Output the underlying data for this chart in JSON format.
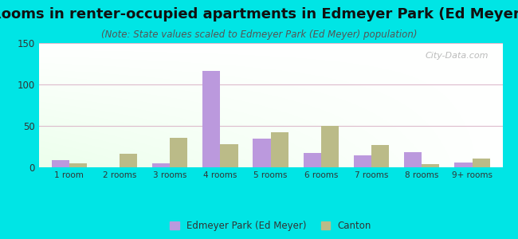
{
  "title": "Rooms in renter-occupied apartments in Edmeyer Park (Ed Meyer)",
  "subtitle": "(Note: State values scaled to Edmeyer Park (Ed Meyer) population)",
  "categories": [
    "1 room",
    "2 rooms",
    "3 rooms",
    "4 rooms",
    "5 rooms",
    "6 rooms",
    "7 rooms",
    "8 rooms",
    "9+ rooms"
  ],
  "edmeyer_values": [
    9,
    0,
    5,
    116,
    35,
    17,
    14,
    18,
    6
  ],
  "canton_values": [
    5,
    16,
    36,
    28,
    42,
    50,
    27,
    4,
    11
  ],
  "edmeyer_color": "#bb99dd",
  "canton_color": "#bbbb88",
  "ylim": [
    0,
    150
  ],
  "yticks": [
    0,
    50,
    100,
    150
  ],
  "background_color": "#00e5e5",
  "watermark": "City-Data.com",
  "legend_labels": [
    "Edmeyer Park (Ed Meyer)",
    "Canton"
  ],
  "bar_width": 0.35,
  "title_fontsize": 13,
  "subtitle_fontsize": 8.5
}
